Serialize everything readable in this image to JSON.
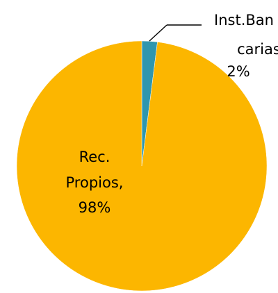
{
  "chart_data": {
    "type": "pie",
    "slices": [
      {
        "name": "Inst.Bancarias",
        "value": 2,
        "color": "#2e96ae",
        "label_lines": [
          "Inst.Ban",
          "carias;",
          "2%"
        ]
      },
      {
        "name": "Rec. Propios",
        "value": 98,
        "color": "#fcb600",
        "label_lines": [
          "Rec.",
          "Propios,",
          "98%"
        ]
      }
    ],
    "start_angle": 0,
    "direction": "clockwise",
    "leader_line_color": "#000000"
  }
}
